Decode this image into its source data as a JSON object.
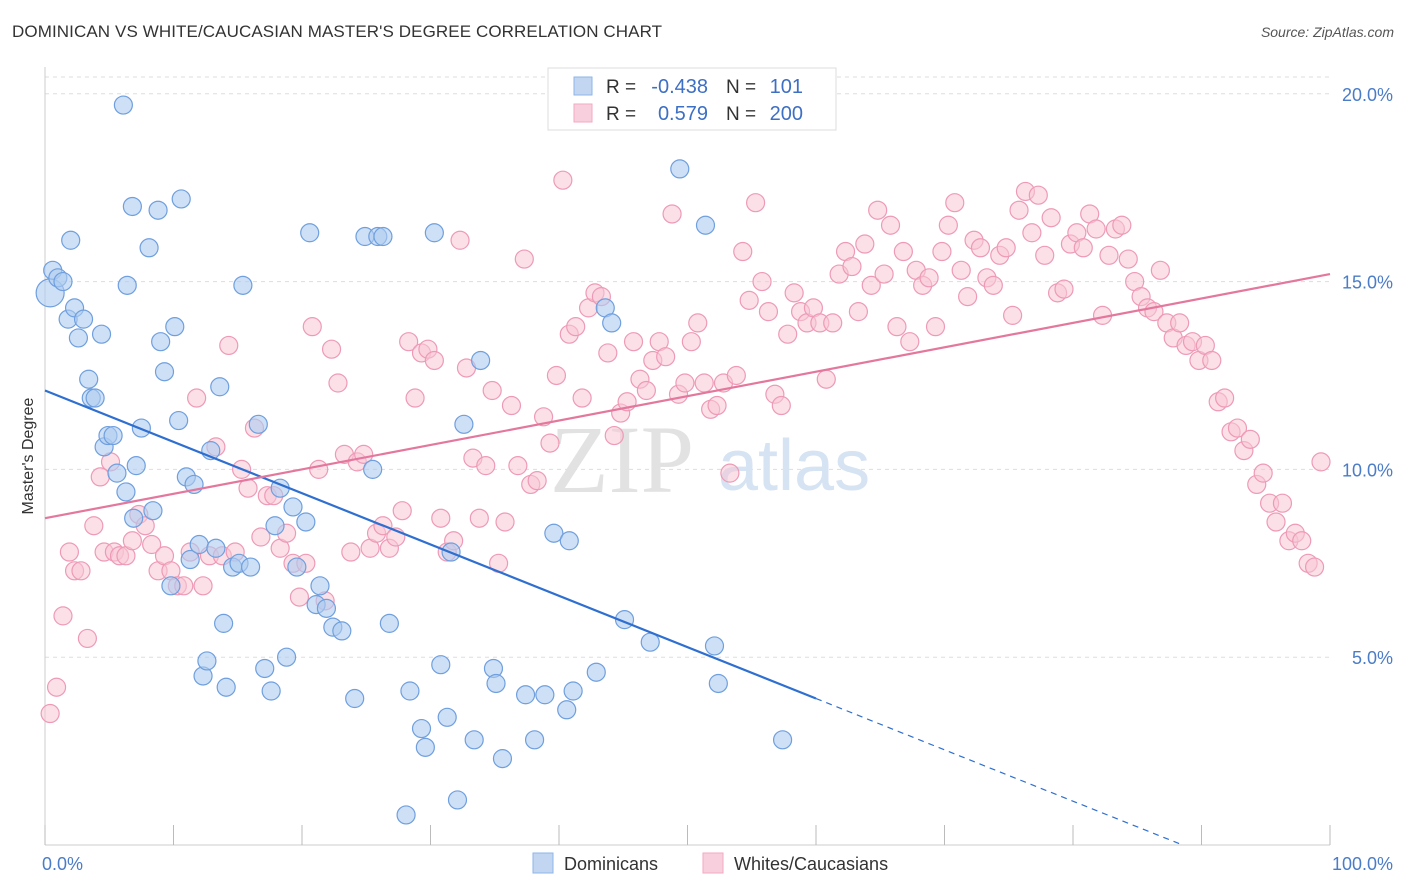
{
  "header": {
    "title": "DOMINICAN VS WHITE/CAUCASIAN MASTER'S DEGREE CORRELATION CHART",
    "source": "Source: ZipAtlas.com"
  },
  "watermark": {
    "zip": "ZIP",
    "atlas": "atlas"
  },
  "legend_top": {
    "r_label": "R =",
    "n_label": "N =",
    "series": [
      {
        "r": "-0.438",
        "n": "101",
        "color": "#8fb5e8"
      },
      {
        "r": "0.579",
        "n": "200",
        "color": "#f3a9c1"
      }
    ]
  },
  "legend_bottom": [
    "Dominicans",
    "Whites/Caucasians"
  ],
  "colors": {
    "blue_fill": "#aecbf0",
    "blue_stroke": "#6f9fde",
    "blue_line": "#2f6fd0",
    "pink_fill": "#f8c6d6",
    "pink_stroke": "#ee9ab6",
    "pink_line": "#e4779d",
    "grid": "#dddddd",
    "tick_text": "#4a7cc7"
  },
  "chart_data": {
    "type": "scatter",
    "title": "DOMINICAN VS WHITE/CAUCASIAN MASTER'S DEGREE CORRELATION CHART",
    "xlabel": "",
    "ylabel": "Master's Degree",
    "xlim": [
      0,
      100
    ],
    "ylim": [
      0,
      20.5
    ],
    "x_tick_labels": [
      "0.0%",
      "100.0%"
    ],
    "y_ticks": [
      5,
      10,
      15,
      20
    ],
    "y_tick_labels": [
      "5.0%",
      "10.0%",
      "15.0%",
      "20.0%"
    ],
    "grid": true,
    "series": [
      {
        "name": "Dominicans",
        "r": -0.438,
        "n": 101,
        "trend": {
          "x0": 0,
          "y0": 12.1,
          "x1": 60,
          "y1": 3.9,
          "dashed_to_x": 100
        },
        "points": [
          [
            0.4,
            14.7
          ],
          [
            0.6,
            15.3
          ],
          [
            1.0,
            15.1
          ],
          [
            1.4,
            15.0
          ],
          [
            1.8,
            14.0
          ],
          [
            2.0,
            16.1
          ],
          [
            2.3,
            14.3
          ],
          [
            2.6,
            13.5
          ],
          [
            3.0,
            14.0
          ],
          [
            3.4,
            12.4
          ],
          [
            3.6,
            11.9
          ],
          [
            3.9,
            11.9
          ],
          [
            4.4,
            13.6
          ],
          [
            4.6,
            10.6
          ],
          [
            4.9,
            10.9
          ],
          [
            5.3,
            10.9
          ],
          [
            5.6,
            9.9
          ],
          [
            6.3,
            9.4
          ],
          [
            6.4,
            14.9
          ],
          [
            6.9,
            8.7
          ],
          [
            7.1,
            10.1
          ],
          [
            7.5,
            11.1
          ],
          [
            8.1,
            15.9
          ],
          [
            8.4,
            8.9
          ],
          [
            8.8,
            16.9
          ],
          [
            9.0,
            13.4
          ],
          [
            9.3,
            12.6
          ],
          [
            9.8,
            6.9
          ],
          [
            10.1,
            13.8
          ],
          [
            10.4,
            11.3
          ],
          [
            10.6,
            17.2
          ],
          [
            11.0,
            9.8
          ],
          [
            11.3,
            7.6
          ],
          [
            11.6,
            9.6
          ],
          [
            12.0,
            8.0
          ],
          [
            12.3,
            4.5
          ],
          [
            12.6,
            4.9
          ],
          [
            12.9,
            10.5
          ],
          [
            13.3,
            7.9
          ],
          [
            13.6,
            12.2
          ],
          [
            13.9,
            5.9
          ],
          [
            14.1,
            4.2
          ],
          [
            14.6,
            7.4
          ],
          [
            15.1,
            7.5
          ],
          [
            15.4,
            14.9
          ],
          [
            16.0,
            7.4
          ],
          [
            16.6,
            11.2
          ],
          [
            17.1,
            4.7
          ],
          [
            17.6,
            4.1
          ],
          [
            17.9,
            8.5
          ],
          [
            18.3,
            9.5
          ],
          [
            18.8,
            5.0
          ],
          [
            19.3,
            9.0
          ],
          [
            19.6,
            7.4
          ],
          [
            20.3,
            8.6
          ],
          [
            20.6,
            16.3
          ],
          [
            21.1,
            6.4
          ],
          [
            21.4,
            6.9
          ],
          [
            21.9,
            6.3
          ],
          [
            22.4,
            5.8
          ],
          [
            23.1,
            5.7
          ],
          [
            24.1,
            3.9
          ],
          [
            24.9,
            16.2
          ],
          [
            25.5,
            10.0
          ],
          [
            25.9,
            16.2
          ],
          [
            26.3,
            16.2
          ],
          [
            26.8,
            5.9
          ],
          [
            28.1,
            0.8
          ],
          [
            28.4,
            4.1
          ],
          [
            29.3,
            3.1
          ],
          [
            29.6,
            2.6
          ],
          [
            30.3,
            16.3
          ],
          [
            30.8,
            4.8
          ],
          [
            31.3,
            3.4
          ],
          [
            31.6,
            7.8
          ],
          [
            32.1,
            1.2
          ],
          [
            32.6,
            11.2
          ],
          [
            33.4,
            2.8
          ],
          [
            33.9,
            12.9
          ],
          [
            34.9,
            4.7
          ],
          [
            35.1,
            4.3
          ],
          [
            35.6,
            2.3
          ],
          [
            37.4,
            4.0
          ],
          [
            38.1,
            2.8
          ],
          [
            38.9,
            4.0
          ],
          [
            39.6,
            8.3
          ],
          [
            40.6,
            3.6
          ],
          [
            40.8,
            8.1
          ],
          [
            41.1,
            4.1
          ],
          [
            42.9,
            4.6
          ],
          [
            43.6,
            14.3
          ],
          [
            44.1,
            13.9
          ],
          [
            45.1,
            6.0
          ],
          [
            47.1,
            5.4
          ],
          [
            49.4,
            18.0
          ],
          [
            51.4,
            16.5
          ],
          [
            52.1,
            5.3
          ],
          [
            52.4,
            4.3
          ],
          [
            57.4,
            2.8
          ],
          [
            6.1,
            19.7
          ],
          [
            6.8,
            17.0
          ]
        ]
      },
      {
        "name": "Whites/Caucasians",
        "r": 0.579,
        "n": 200,
        "trend": {
          "x0": 0,
          "y0": 8.7,
          "x1": 100,
          "y1": 15.2
        },
        "points": [
          [
            0.4,
            3.5
          ],
          [
            0.9,
            4.2
          ],
          [
            1.4,
            6.1
          ],
          [
            1.9,
            7.8
          ],
          [
            2.3,
            7.3
          ],
          [
            2.8,
            7.3
          ],
          [
            3.3,
            5.5
          ],
          [
            3.8,
            8.5
          ],
          [
            4.3,
            9.8
          ],
          [
            4.6,
            7.8
          ],
          [
            5.1,
            10.2
          ],
          [
            5.4,
            7.8
          ],
          [
            5.8,
            7.7
          ],
          [
            6.3,
            7.7
          ],
          [
            6.8,
            8.1
          ],
          [
            7.3,
            8.8
          ],
          [
            7.8,
            8.5
          ],
          [
            8.3,
            8.0
          ],
          [
            8.8,
            7.3
          ],
          [
            9.3,
            7.7
          ],
          [
            9.8,
            7.3
          ],
          [
            10.3,
            6.9
          ],
          [
            10.8,
            6.9
          ],
          [
            11.3,
            7.8
          ],
          [
            11.8,
            11.9
          ],
          [
            12.3,
            6.9
          ],
          [
            12.8,
            7.7
          ],
          [
            13.3,
            10.6
          ],
          [
            13.8,
            7.7
          ],
          [
            14.3,
            13.3
          ],
          [
            14.8,
            7.8
          ],
          [
            15.3,
            10.0
          ],
          [
            15.8,
            9.5
          ],
          [
            16.3,
            11.1
          ],
          [
            16.8,
            8.2
          ],
          [
            17.3,
            9.3
          ],
          [
            17.8,
            9.3
          ],
          [
            18.3,
            7.9
          ],
          [
            18.8,
            8.3
          ],
          [
            19.3,
            7.5
          ],
          [
            19.8,
            6.6
          ],
          [
            20.3,
            7.5
          ],
          [
            20.8,
            13.8
          ],
          [
            21.3,
            10.0
          ],
          [
            21.8,
            6.5
          ],
          [
            22.3,
            13.2
          ],
          [
            22.8,
            12.3
          ],
          [
            23.3,
            10.4
          ],
          [
            23.8,
            7.8
          ],
          [
            24.3,
            10.2
          ],
          [
            24.8,
            10.4
          ],
          [
            25.3,
            7.9
          ],
          [
            25.8,
            8.3
          ],
          [
            26.3,
            8.5
          ],
          [
            26.8,
            7.9
          ],
          [
            27.3,
            8.2
          ],
          [
            27.8,
            8.9
          ],
          [
            28.3,
            13.4
          ],
          [
            28.8,
            11.9
          ],
          [
            29.3,
            13.1
          ],
          [
            29.8,
            13.2
          ],
          [
            30.3,
            12.9
          ],
          [
            30.8,
            8.7
          ],
          [
            31.3,
            7.8
          ],
          [
            31.8,
            8.1
          ],
          [
            32.3,
            16.1
          ],
          [
            32.8,
            12.7
          ],
          [
            33.3,
            10.3
          ],
          [
            33.8,
            8.7
          ],
          [
            34.3,
            10.1
          ],
          [
            34.8,
            12.1
          ],
          [
            35.3,
            7.5
          ],
          [
            35.8,
            8.6
          ],
          [
            36.3,
            11.7
          ],
          [
            36.8,
            10.1
          ],
          [
            37.3,
            15.6
          ],
          [
            37.8,
            9.6
          ],
          [
            38.3,
            9.7
          ],
          [
            38.8,
            11.4
          ],
          [
            39.3,
            10.7
          ],
          [
            39.8,
            12.5
          ],
          [
            40.3,
            17.7
          ],
          [
            40.8,
            13.6
          ],
          [
            41.3,
            13.8
          ],
          [
            41.8,
            11.9
          ],
          [
            42.3,
            14.3
          ],
          [
            42.8,
            14.7
          ],
          [
            43.3,
            14.6
          ],
          [
            43.8,
            13.1
          ],
          [
            44.3,
            10.9
          ],
          [
            44.8,
            11.5
          ],
          [
            45.3,
            11.8
          ],
          [
            45.8,
            13.4
          ],
          [
            46.3,
            12.4
          ],
          [
            46.8,
            12.1
          ],
          [
            47.3,
            12.9
          ],
          [
            47.8,
            13.4
          ],
          [
            48.3,
            13.0
          ],
          [
            48.8,
            16.8
          ],
          [
            49.3,
            12.0
          ],
          [
            49.8,
            12.3
          ],
          [
            50.3,
            13.4
          ],
          [
            50.8,
            13.9
          ],
          [
            51.3,
            12.3
          ],
          [
            51.8,
            11.6
          ],
          [
            52.3,
            11.7
          ],
          [
            52.8,
            12.3
          ],
          [
            53.3,
            9.9
          ],
          [
            53.8,
            12.5
          ],
          [
            54.3,
            15.8
          ],
          [
            54.8,
            14.5
          ],
          [
            55.3,
            17.1
          ],
          [
            55.8,
            15.0
          ],
          [
            56.3,
            14.2
          ],
          [
            56.8,
            12.0
          ],
          [
            57.3,
            11.7
          ],
          [
            57.8,
            13.6
          ],
          [
            58.3,
            14.7
          ],
          [
            58.8,
            14.2
          ],
          [
            59.3,
            13.9
          ],
          [
            59.8,
            14.3
          ],
          [
            60.3,
            13.9
          ],
          [
            60.8,
            12.4
          ],
          [
            61.3,
            13.9
          ],
          [
            61.8,
            15.2
          ],
          [
            62.3,
            15.8
          ],
          [
            62.8,
            15.4
          ],
          [
            63.3,
            14.2
          ],
          [
            63.8,
            16.0
          ],
          [
            64.3,
            14.9
          ],
          [
            64.8,
            16.9
          ],
          [
            65.3,
            15.2
          ],
          [
            65.8,
            16.5
          ],
          [
            66.3,
            13.8
          ],
          [
            66.8,
            15.8
          ],
          [
            67.3,
            13.4
          ],
          [
            67.8,
            15.3
          ],
          [
            68.3,
            14.9
          ],
          [
            68.8,
            15.1
          ],
          [
            69.3,
            13.8
          ],
          [
            69.8,
            15.8
          ],
          [
            70.3,
            16.5
          ],
          [
            70.8,
            17.1
          ],
          [
            71.3,
            15.3
          ],
          [
            71.8,
            14.6
          ],
          [
            72.3,
            16.1
          ],
          [
            72.8,
            15.9
          ],
          [
            73.3,
            15.1
          ],
          [
            73.8,
            14.9
          ],
          [
            74.3,
            15.7
          ],
          [
            74.8,
            15.9
          ],
          [
            75.3,
            14.1
          ],
          [
            75.8,
            16.9
          ],
          [
            76.3,
            17.4
          ],
          [
            76.8,
            16.3
          ],
          [
            77.3,
            17.3
          ],
          [
            77.8,
            15.7
          ],
          [
            78.3,
            16.7
          ],
          [
            78.8,
            14.7
          ],
          [
            79.3,
            14.8
          ],
          [
            79.8,
            16.0
          ],
          [
            80.3,
            16.3
          ],
          [
            80.8,
            15.9
          ],
          [
            81.3,
            16.8
          ],
          [
            81.8,
            16.4
          ],
          [
            82.3,
            14.1
          ],
          [
            82.8,
            15.7
          ],
          [
            83.3,
            16.4
          ],
          [
            83.8,
            16.5
          ],
          [
            84.3,
            15.6
          ],
          [
            84.8,
            15.0
          ],
          [
            85.3,
            14.6
          ],
          [
            85.8,
            14.3
          ],
          [
            86.3,
            14.2
          ],
          [
            86.8,
            15.3
          ],
          [
            87.3,
            13.9
          ],
          [
            87.8,
            13.5
          ],
          [
            88.3,
            13.9
          ],
          [
            88.8,
            13.3
          ],
          [
            89.3,
            13.4
          ],
          [
            89.8,
            12.9
          ],
          [
            90.3,
            13.3
          ],
          [
            90.8,
            12.9
          ],
          [
            91.3,
            11.8
          ],
          [
            91.8,
            11.9
          ],
          [
            92.3,
            11.0
          ],
          [
            92.8,
            11.1
          ],
          [
            93.3,
            10.5
          ],
          [
            93.8,
            10.8
          ],
          [
            94.3,
            9.6
          ],
          [
            94.8,
            9.9
          ],
          [
            95.3,
            9.1
          ],
          [
            95.8,
            8.6
          ],
          [
            96.3,
            9.1
          ],
          [
            96.8,
            8.1
          ],
          [
            97.3,
            8.3
          ],
          [
            97.8,
            8.1
          ],
          [
            98.3,
            7.5
          ],
          [
            98.8,
            7.4
          ],
          [
            99.3,
            10.2
          ]
        ]
      }
    ]
  }
}
